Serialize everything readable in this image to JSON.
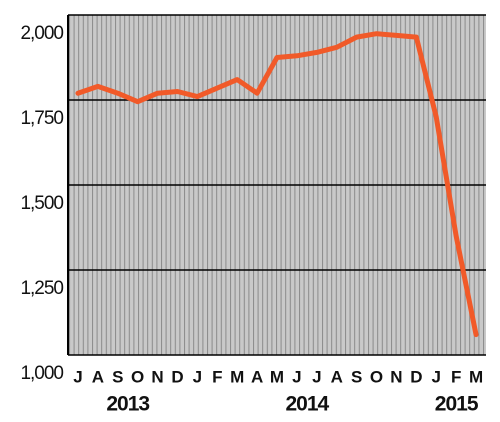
{
  "chart_data": {
    "type": "line",
    "categories": [
      "J",
      "A",
      "S",
      "O",
      "N",
      "D",
      "J",
      "F",
      "M",
      "A",
      "M",
      "J",
      "J",
      "A",
      "S",
      "O",
      "N",
      "D",
      "J",
      "F",
      "M"
    ],
    "year_labels": [
      "2013",
      "2014",
      "2015"
    ],
    "series": [
      {
        "color": "#f15a29",
        "values": [
          1770,
          1790,
          1770,
          1745,
          1770,
          1775,
          1760,
          1785,
          1810,
          1770,
          1875,
          1880,
          1890,
          1905,
          1935,
          1945,
          1940,
          1935,
          1700,
          1350,
          1060
        ]
      }
    ],
    "ylim": [
      1000,
      2000
    ],
    "yticks": [
      {
        "value": 1000,
        "label": "1,000"
      },
      {
        "value": 1250,
        "label": "1,250"
      },
      {
        "value": 1500,
        "label": "1,500"
      },
      {
        "value": 1750,
        "label": "1,750"
      },
      {
        "value": 2000,
        "label": "2,000"
      }
    ],
    "grid": true
  }
}
